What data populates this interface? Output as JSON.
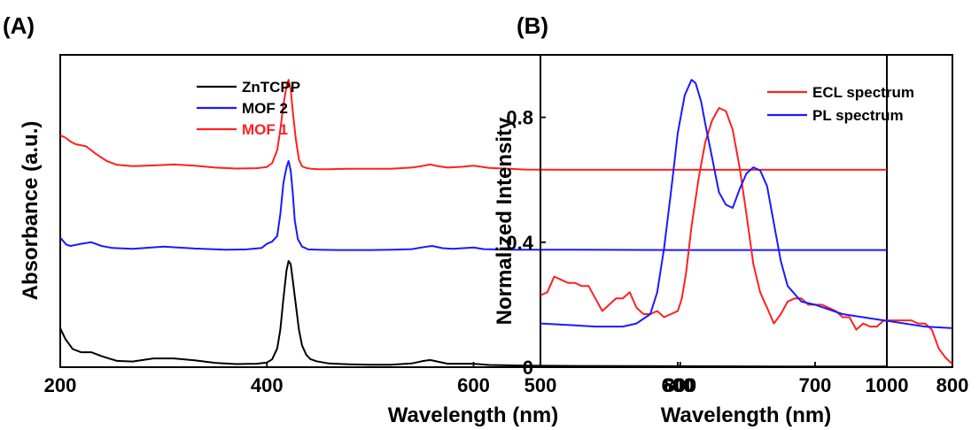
{
  "chart_data": [
    {
      "panel_label": "(A)",
      "type": "line",
      "xlabel": "Wavelength (nm)",
      "ylabel": "Absorbance (a.u.)",
      "xlim": [
        200,
        1000
      ],
      "xticks": [
        "200",
        "400",
        "600",
        "800",
        "1000"
      ],
      "yticks": [],
      "y_note": "stacked curves in arbitrary units, offset vertically",
      "ylim": [
        0,
        100
      ],
      "grid": false,
      "legend_position": "top-center",
      "series": [
        {
          "name": "ZnTCPP",
          "color": "#000000",
          "x": [
            200,
            205,
            212,
            220,
            230,
            240,
            255,
            270,
            290,
            310,
            330,
            350,
            370,
            390,
            400,
            405,
            410,
            413,
            416,
            419,
            421,
            423,
            425,
            428,
            431,
            434,
            438,
            442,
            448,
            460,
            480,
            500,
            520,
            540,
            550,
            558,
            565,
            575,
            590,
            600,
            615,
            650,
            700,
            800,
            900,
            1000
          ],
          "y": [
            12.5,
            9,
            5.8,
            4.8,
            4.8,
            3.5,
            2,
            1.8,
            2.8,
            2.8,
            2.2,
            1.4,
            1,
            1.1,
            1.5,
            2.5,
            6,
            12,
            22,
            31,
            34,
            33,
            28,
            20,
            12,
            7,
            4,
            2.6,
            1.9,
            1.2,
            0.9,
            0.8,
            0.8,
            1.2,
            1.9,
            2.3,
            1.8,
            1.1,
            1.1,
            1.1,
            0.7,
            0.5,
            0.4,
            0.3,
            0.2,
            0.2
          ]
        },
        {
          "name": "MOF 2",
          "color": "#1a1aff",
          "x": [
            200,
            203,
            206,
            210,
            220,
            230,
            240,
            250,
            270,
            300,
            330,
            360,
            380,
            395,
            400,
            405,
            410,
            413,
            416,
            419,
            421,
            423,
            425,
            427,
            430,
            434,
            440,
            450,
            470,
            500,
            520,
            540,
            555,
            560,
            570,
            580,
            590,
            600,
            610,
            640,
            700,
            800,
            900,
            1000
          ],
          "y": [
            41.5,
            40.3,
            39.2,
            38.8,
            39.5,
            40,
            38.8,
            38.2,
            37.9,
            38.6,
            38,
            37.6,
            37.7,
            38.2,
            39.5,
            40.2,
            42,
            49,
            59,
            64,
            66,
            63,
            56,
            47,
            41,
            38.6,
            37.7,
            37.6,
            37.5,
            37.5,
            37.6,
            37.8,
            38.6,
            38.8,
            38.1,
            37.9,
            38.1,
            38.3,
            37.8,
            37.6,
            37.6,
            37.5,
            37.5,
            37.5
          ]
        },
        {
          "name": "MOF 1",
          "color": "#ff2020",
          "x": [
            200,
            205,
            210,
            215,
            225,
            235,
            245,
            255,
            270,
            290,
            310,
            330,
            350,
            370,
            390,
            400,
            405,
            410,
            413,
            416,
            419,
            421,
            423,
            425,
            428,
            431,
            434,
            438,
            443,
            450,
            460,
            480,
            500,
            520,
            540,
            550,
            558,
            565,
            575,
            590,
            600,
            615,
            650,
            700,
            800,
            900,
            1000
          ],
          "y": [
            74.2,
            73.5,
            72.2,
            71.4,
            70.7,
            68.2,
            66,
            64.8,
            64.4,
            64.6,
            64.9,
            64.5,
            63.9,
            63.6,
            63.7,
            64.1,
            65.3,
            69.5,
            76,
            84,
            90,
            92,
            89,
            82,
            73,
            66.5,
            64.3,
            63.8,
            63.5,
            63.4,
            63.4,
            63.5,
            63.5,
            63.5,
            63.9,
            64.4,
            64.9,
            64.4,
            63.9,
            64.2,
            64.5,
            63.8,
            63.3,
            63.2,
            63.2,
            63.2,
            63.2
          ]
        }
      ]
    },
    {
      "panel_label": "(B)",
      "type": "line",
      "xlabel": "Wavelength (nm)",
      "ylabel": "Normalized Intensity",
      "xlim": [
        500,
        800
      ],
      "ylim": [
        0,
        1.0
      ],
      "xticks": [
        "500",
        "600",
        "700",
        "800"
      ],
      "yticks": [
        "0",
        "0.4",
        "0.8"
      ],
      "ytick_values": [
        0,
        0.4,
        0.8
      ],
      "grid": false,
      "legend_position": "top-right",
      "series": [
        {
          "name": "ECL spectrum",
          "color": "#ff2020",
          "x": [
            500,
            505,
            510,
            515,
            520,
            525,
            530,
            535,
            540,
            545,
            550,
            555,
            560,
            565,
            570,
            575,
            580,
            585,
            590,
            595,
            600,
            603,
            606,
            610,
            615,
            620,
            625,
            630,
            635,
            640,
            645,
            650,
            655,
            660,
            665,
            670,
            675,
            680,
            685,
            690,
            695,
            700,
            705,
            710,
            715,
            720,
            725,
            730,
            735,
            740,
            745,
            750,
            755,
            760,
            765,
            770,
            775,
            780,
            785,
            790,
            795,
            800
          ],
          "y": [
            0.23,
            0.24,
            0.29,
            0.28,
            0.27,
            0.27,
            0.26,
            0.26,
            0.22,
            0.18,
            0.2,
            0.22,
            0.22,
            0.24,
            0.19,
            0.17,
            0.17,
            0.18,
            0.16,
            0.17,
            0.18,
            0.22,
            0.3,
            0.45,
            0.6,
            0.72,
            0.79,
            0.83,
            0.82,
            0.76,
            0.64,
            0.49,
            0.33,
            0.24,
            0.19,
            0.14,
            0.17,
            0.21,
            0.22,
            0.22,
            0.2,
            0.2,
            0.2,
            0.19,
            0.18,
            0.16,
            0.16,
            0.12,
            0.14,
            0.13,
            0.13,
            0.15,
            0.15,
            0.15,
            0.15,
            0.15,
            0.14,
            0.14,
            0.12,
            0.06,
            0.03,
            0.01
          ]
        },
        {
          "name": "PL spectrum",
          "color": "#1a1aff",
          "x": [
            500,
            520,
            540,
            560,
            570,
            580,
            585,
            590,
            595,
            600,
            605,
            610,
            613,
            617,
            620,
            625,
            630,
            635,
            640,
            645,
            650,
            655,
            660,
            665,
            670,
            675,
            680,
            690,
            700,
            720,
            750,
            780,
            800
          ],
          "y": [
            0.14,
            0.135,
            0.13,
            0.13,
            0.14,
            0.17,
            0.24,
            0.38,
            0.56,
            0.75,
            0.87,
            0.92,
            0.91,
            0.85,
            0.78,
            0.67,
            0.56,
            0.52,
            0.51,
            0.57,
            0.62,
            0.64,
            0.63,
            0.58,
            0.46,
            0.34,
            0.26,
            0.21,
            0.2,
            0.17,
            0.15,
            0.13,
            0.125
          ]
        }
      ]
    }
  ]
}
